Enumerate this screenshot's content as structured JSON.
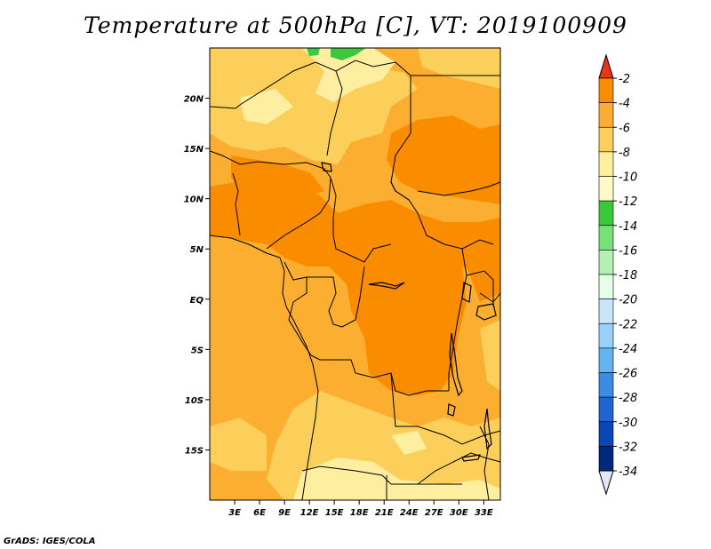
{
  "title": "Temperature at 500hPa [C], VT: 2019100909",
  "credit": "GrADS: IGES/COLA",
  "map": {
    "lon_range": [
      0,
      35
    ],
    "lat_range": [
      -20,
      25
    ],
    "lat_ticks": [
      {
        "value": 20,
        "label": "20N"
      },
      {
        "value": 15,
        "label": "15N"
      },
      {
        "value": 10,
        "label": "10N"
      },
      {
        "value": 5,
        "label": "5N"
      },
      {
        "value": 0,
        "label": "EQ"
      },
      {
        "value": -5,
        "label": "5S"
      },
      {
        "value": -10,
        "label": "10S"
      },
      {
        "value": -15,
        "label": "15S"
      }
    ],
    "lon_ticks": [
      {
        "value": 3,
        "label": "3E"
      },
      {
        "value": 6,
        "label": "6E"
      },
      {
        "value": 9,
        "label": "9E"
      },
      {
        "value": 12,
        "label": "12E"
      },
      {
        "value": 15,
        "label": "15E"
      },
      {
        "value": 18,
        "label": "18E"
      },
      {
        "value": 21,
        "label": "21E"
      },
      {
        "value": 24,
        "label": "24E"
      },
      {
        "value": 27,
        "label": "27E"
      },
      {
        "value": 30,
        "label": "30E"
      },
      {
        "value": 33,
        "label": "33E"
      }
    ]
  },
  "colorbar": {
    "labels": [
      "-2",
      "-4",
      "-6",
      "-8",
      "-10",
      "-12",
      "-14",
      "-16",
      "-18",
      "-20",
      "-22",
      "-24",
      "-26",
      "-28",
      "-30",
      "-32",
      "-34"
    ],
    "colors": [
      "#f0501e",
      "#fa8c00",
      "#fbae30",
      "#fcce5a",
      "#feeea0",
      "#fffac8",
      "#3cc83c",
      "#78e078",
      "#b4f0b4",
      "#e6ffe6",
      "#c8e6fa",
      "#96d2fa",
      "#64b4f0",
      "#3c8ce6",
      "#1e64d2",
      "#0a46b4",
      "#00287d",
      "#0a0f60"
    ],
    "top_color": "#e8341a",
    "bottom_color": "#e6e6fa"
  },
  "colors": {
    "base_field": "#fbae30",
    "warm_field": "#fa8c00",
    "cool_field": "#fcce5a",
    "cold_field": "#feeea0",
    "green_patch": "#3cc83c",
    "border": "#000000"
  }
}
